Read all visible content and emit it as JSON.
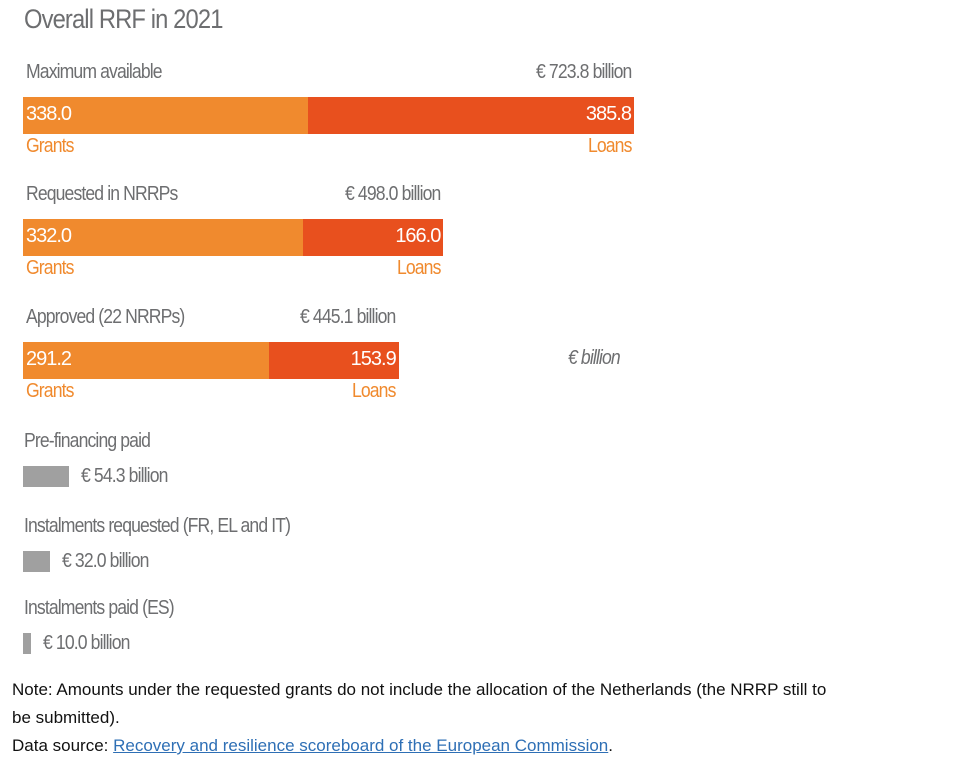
{
  "chart_data": {
    "type": "bar",
    "orientation": "horizontal-stacked",
    "title": "Overall RRF in 2021",
    "unit_label": "€ billion",
    "groups": [
      {
        "label": "Maximum available",
        "total_label": "€ 723.8 billion",
        "total": 723.8,
        "segments": [
          {
            "name": "Grants",
            "value": 338.0,
            "label": "338.0"
          },
          {
            "name": "Loans",
            "value": 385.8,
            "label": "385.8"
          }
        ]
      },
      {
        "label": "Requested in NRRPs",
        "total_label": "€ 498.0 billion",
        "total": 498.0,
        "segments": [
          {
            "name": "Grants",
            "value": 332.0,
            "label": "332.0"
          },
          {
            "name": "Loans",
            "value": 166.0,
            "label": "166.0"
          }
        ]
      },
      {
        "label": "Approved (22 NRRPs)",
        "total_label": "€ 445.1 billion",
        "total": 445.1,
        "segments": [
          {
            "name": "Grants",
            "value": 291.2,
            "label": "291.2"
          },
          {
            "name": "Loans",
            "value": 153.9,
            "label": "153.9"
          }
        ]
      }
    ],
    "payments": [
      {
        "label": "Pre-financing paid",
        "value": 54.3,
        "value_label": "€ 54.3 billion"
      },
      {
        "label": "Instalments requested (FR, EL and IT)",
        "value": 32.0,
        "value_label": "€ 32.0 billion"
      },
      {
        "label": "Instalments paid (ES)",
        "value": 10.0,
        "value_label": "€ 10.0 billion"
      }
    ],
    "colors": {
      "Grants": "#f08a2e",
      "Loans": "#e8501e",
      "payments": "#a0a0a0"
    }
  },
  "note": {
    "text": "Note: Amounts under the requested grants do not include the allocation of the Netherlands (the NRRP still to",
    "text2": "be submitted).",
    "source_prefix": "Data source: ",
    "source_link": "Recovery and resilience scoreboard of the European Commission",
    "source_suffix": "."
  }
}
